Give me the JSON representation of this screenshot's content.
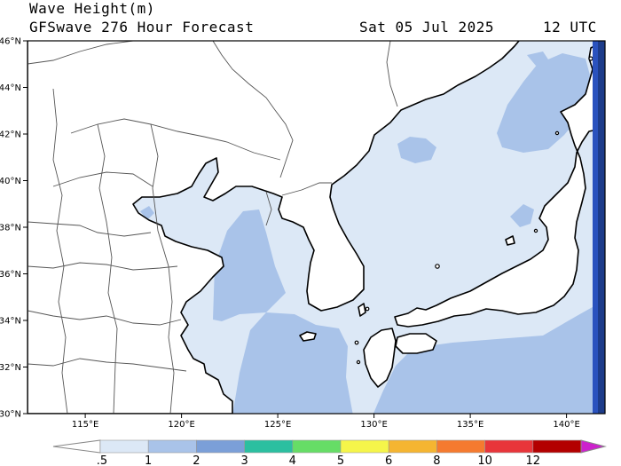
{
  "header": {
    "title": "Wave Height(m)",
    "model": "GFSwave 276 Hour Forecast",
    "date": "Sat 05 Jul 2025",
    "time": "12 UTC"
  },
  "map": {
    "lat_labels": [
      "46°N",
      "44°N",
      "42°N",
      "40°N",
      "38°N",
      "36°N",
      "34°N",
      "32°N",
      "30°N"
    ],
    "lon_labels": [
      "115°E",
      "120°E",
      "125°E",
      "130°E",
      "135°E",
      "140°E"
    ],
    "lat_range": [
      30,
      46
    ],
    "lon_range": [
      112,
      142
    ],
    "colors": {
      "land": "#ffffff",
      "band_0_5_1": "#dce8f6",
      "band_1_2": "#a9c3e9",
      "band_2_3": "#7b9fd8",
      "coast": "#000000",
      "border": "#444444"
    }
  },
  "colorbar": {
    "labels": [
      ".5",
      "1",
      "2",
      "3",
      "4",
      "5",
      "6",
      "8",
      "10",
      "12"
    ],
    "colors": [
      "#ffffff",
      "#dce8f6",
      "#a9c3e9",
      "#7b9fd8",
      "#2bbfa0",
      "#66dd66",
      "#f5f54a",
      "#f5b531",
      "#f57a2f",
      "#e8353a",
      "#b30000",
      "#cc22cc"
    ]
  }
}
